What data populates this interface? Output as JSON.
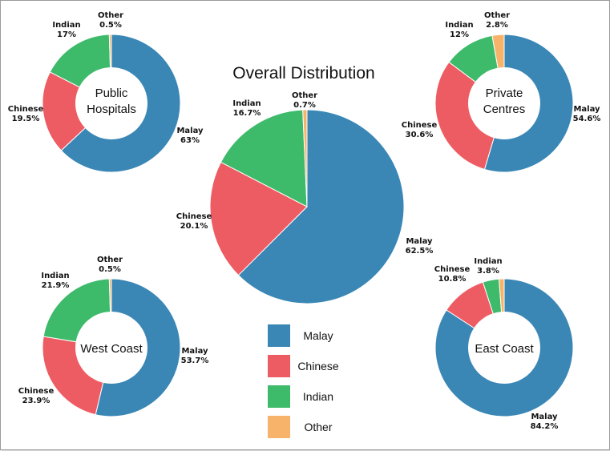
{
  "title": "Overall Distribution",
  "legend": [
    {
      "name": "Malay",
      "color": "#3a87b6"
    },
    {
      "name": "Chinese",
      "color": "#ee5c63"
    },
    {
      "name": "Indian",
      "color": "#3dba6a"
    },
    {
      "name": "Other",
      "color": "#f8b36b"
    }
  ],
  "chart_data": [
    {
      "type": "pie",
      "title": "Overall Distribution",
      "categories": [
        "Malay",
        "Chinese",
        "Indian",
        "Other"
      ],
      "values": [
        62.5,
        20.1,
        16.7,
        0.7
      ],
      "value_labels": [
        "62.5%",
        "20.1%",
        "16.7%",
        "0.7%"
      ]
    },
    {
      "type": "pie",
      "title": "Public Hospitals",
      "categories": [
        "Malay",
        "Chinese",
        "Indian",
        "Other"
      ],
      "values": [
        63,
        19.5,
        17,
        0.5
      ],
      "value_labels": [
        "63%",
        "19.5%",
        "17%",
        "0.5%"
      ]
    },
    {
      "type": "pie",
      "title": "Private Centres",
      "categories": [
        "Malay",
        "Chinese",
        "Indian",
        "Other"
      ],
      "values": [
        54.6,
        30.6,
        12,
        2.8
      ],
      "value_labels": [
        "54.6%",
        "30.6%",
        "12%",
        "2.8%"
      ]
    },
    {
      "type": "pie",
      "title": "West Coast",
      "categories": [
        "Malay",
        "Chinese",
        "Indian",
        "Other"
      ],
      "values": [
        53.7,
        23.9,
        21.9,
        0.5
      ],
      "value_labels": [
        "53.7%",
        "23.9%",
        "21.9%",
        "0.5%"
      ]
    },
    {
      "type": "pie",
      "title": "East Coast",
      "categories": [
        "Malay",
        "Chinese",
        "Indian",
        "Other"
      ],
      "values": [
        84.2,
        10.8,
        3.8,
        1.2
      ],
      "value_labels": [
        "84.2%",
        "10.8%",
        "3.8%",
        ""
      ]
    }
  ]
}
